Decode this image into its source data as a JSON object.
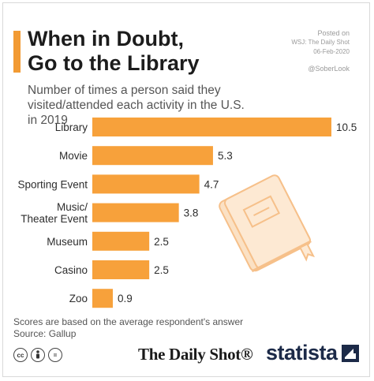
{
  "header": {
    "title_line1": "When in Doubt,",
    "title_line2": "Go to the Library",
    "posted_on": "Posted on",
    "source_wsj": "WSJ: The Daily Shot",
    "date": "06-Feb-2020",
    "handle": "@SoberLook",
    "subtitle": "Number of times a person said they visited/attended each activity in the U.S. in 2019"
  },
  "footer": {
    "note": "Scores are based on the average respondent's answer",
    "source": "Source: Gallup",
    "daily_shot_logo": "The Daily Shot®",
    "statista_logo": "statista",
    "cc_icons": [
      "cc",
      "by",
      "="
    ]
  },
  "colors": {
    "bar": "#f7a13b",
    "accent": "#f29a33",
    "book_outline": "#f6c08a",
    "book_fill": "#fbe1c4"
  },
  "chart_data": {
    "type": "bar",
    "orientation": "horizontal",
    "categories": [
      "Library",
      "Movie",
      "Sporting Event",
      "Music/ Theater Event",
      "Museum",
      "Casino",
      "Zoo"
    ],
    "category_lines": [
      [
        "Library"
      ],
      [
        "Movie"
      ],
      [
        "Sporting Event"
      ],
      [
        "Music/",
        "Theater Event"
      ],
      [
        "Museum"
      ],
      [
        "Casino"
      ],
      [
        "Zoo"
      ]
    ],
    "values": [
      10.5,
      5.3,
      4.7,
      3.8,
      2.5,
      2.5,
      0.9
    ],
    "value_labels": [
      "10.5",
      "5.3",
      "4.7",
      "3.8",
      "2.5",
      "2.5",
      "0.9"
    ],
    "xlim": [
      0,
      10.5
    ],
    "grid": false,
    "axis_ticks_shown": false
  },
  "decoration": {
    "icon": "book-icon"
  }
}
